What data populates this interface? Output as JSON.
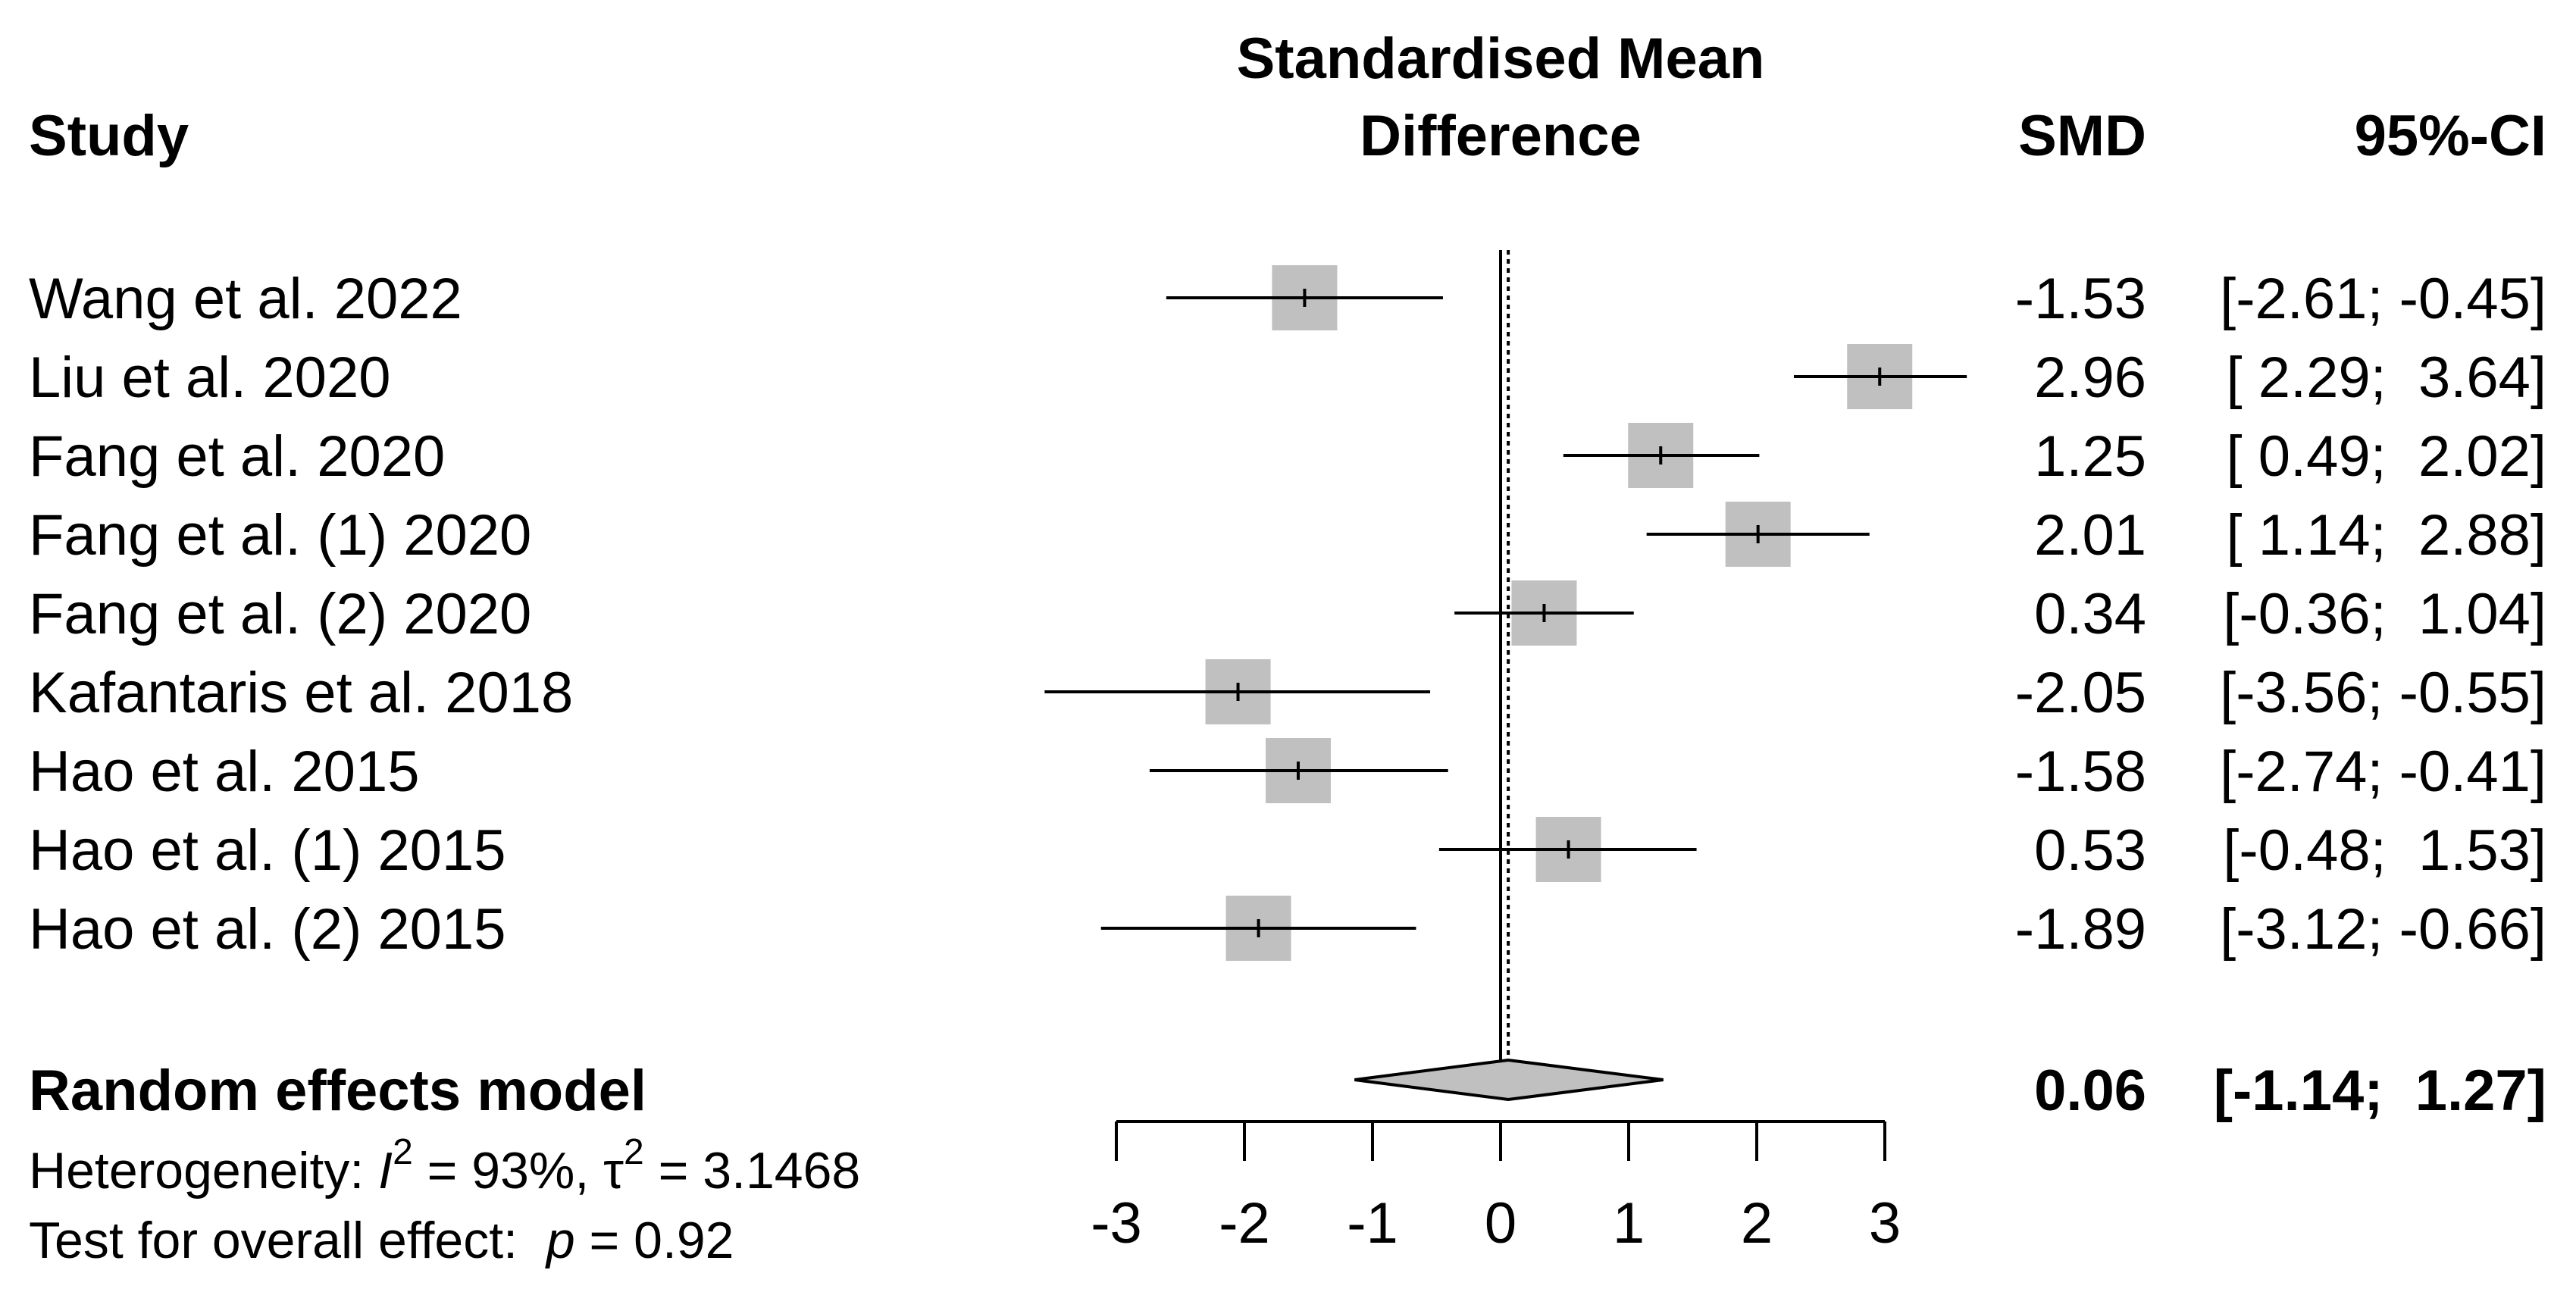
{
  "chart_data": {
    "type": "forest",
    "header": {
      "study": "Study",
      "plot_title_line1": "Standardised Mean",
      "plot_title_line2": "Difference",
      "smd": "SMD",
      "ci": "95%-CI"
    },
    "studies": [
      {
        "label": "Wang et al. 2022",
        "smd": -1.53,
        "lower": -2.61,
        "upper": -0.45,
        "smd_text": "-1.53",
        "ci_text": "[-2.61; -0.45]"
      },
      {
        "label": "Liu et al. 2020",
        "smd": 2.96,
        "lower": 2.29,
        "upper": 3.64,
        "smd_text": "2.96",
        "ci_text": "[ 2.29;  3.64]"
      },
      {
        "label": "Fang et al. 2020",
        "smd": 1.25,
        "lower": 0.49,
        "upper": 2.02,
        "smd_text": "1.25",
        "ci_text": "[ 0.49;  2.02]"
      },
      {
        "label": "Fang et al. (1) 2020",
        "smd": 2.01,
        "lower": 1.14,
        "upper": 2.88,
        "smd_text": "2.01",
        "ci_text": "[ 1.14;  2.88]"
      },
      {
        "label": "Fang et al. (2) 2020",
        "smd": 0.34,
        "lower": -0.36,
        "upper": 1.04,
        "smd_text": "0.34",
        "ci_text": "[-0.36;  1.04]"
      },
      {
        "label": "Kafantaris et al. 2018",
        "smd": -2.05,
        "lower": -3.56,
        "upper": -0.55,
        "smd_text": "-2.05",
        "ci_text": "[-3.56; -0.55]"
      },
      {
        "label": "Hao et al. 2015",
        "smd": -1.58,
        "lower": -2.74,
        "upper": -0.41,
        "smd_text": "-1.58",
        "ci_text": "[-2.74; -0.41]"
      },
      {
        "label": "Hao et al. (1) 2015",
        "smd": 0.53,
        "lower": -0.48,
        "upper": 1.53,
        "smd_text": "0.53",
        "ci_text": "[-0.48;  1.53]"
      },
      {
        "label": "Hao et al. (2) 2015",
        "smd": -1.89,
        "lower": -3.12,
        "upper": -0.66,
        "smd_text": "-1.89",
        "ci_text": "[-3.12; -0.66]"
      }
    ],
    "pooled": {
      "label": "Random effects model",
      "smd": 0.06,
      "lower": -1.14,
      "upper": 1.27,
      "smd_text": "0.06",
      "ci_text": "[-1.14;  1.27]"
    },
    "heterogeneity": {
      "prefix": "Heterogeneity: ",
      "i2_symbol": "I",
      "i2_value": " = 93%, ",
      "tau_symbol": "τ",
      "tau_value": " = 3.1468",
      "superscript": "2"
    },
    "overall_test": {
      "prefix": "Test for overall effect:  ",
      "p_symbol": "p",
      "p_value": " = 0.92"
    },
    "x_axis": {
      "range": [
        -3,
        3
      ],
      "ticks": [
        -3,
        -2,
        -1,
        0,
        1,
        2,
        3
      ],
      "tick_labels": [
        "-3",
        "-2",
        "-1",
        "0",
        "1",
        "2",
        "3"
      ],
      "null_line": 0
    },
    "colors": {
      "box": "#c0c0c0",
      "diamond": "#c0c0c0",
      "line": "#000000"
    }
  }
}
